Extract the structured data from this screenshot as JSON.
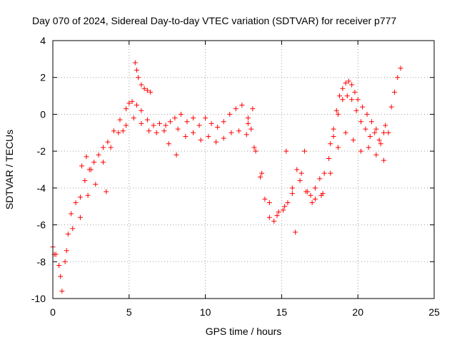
{
  "chart_data": {
    "type": "scatter",
    "title": "Day 070 of 2024, Sidereal Day-to-day VTEC variation (SDTVAR) for receiver p777",
    "xlabel": "GPS time / hours",
    "ylabel": "SDTVAR / TECUs",
    "xlim": [
      0,
      25
    ],
    "ylim": [
      -10,
      4
    ],
    "xticks": [
      0,
      5,
      10,
      15,
      20,
      25
    ],
    "yticks": [
      -10,
      -8,
      -6,
      -4,
      -2,
      0,
      2,
      4
    ],
    "xtick_labels": [
      "0",
      "5",
      "10",
      "15",
      "20",
      "25"
    ],
    "ytick_labels": [
      "-10",
      "-8",
      "-6",
      "-4",
      "-2",
      "0",
      "2",
      "4"
    ],
    "grid": true,
    "marker": "+",
    "color": "#ff0000",
    "series": [
      {
        "x": [
          0.0,
          0.2,
          0.4,
          0.6,
          0.8,
          1.0,
          1.2,
          1.5,
          1.8,
          2.1,
          2.4,
          2.7,
          3.0,
          3.3,
          3.6,
          4.0,
          4.4,
          4.8,
          5.0,
          5.2,
          5.5,
          5.8,
          6.2,
          6.6,
          7.0,
          7.4,
          7.7,
          8.0,
          8.4,
          8.8,
          9.2,
          9.6,
          10.0,
          10.4,
          10.8,
          11.2,
          11.6,
          12.0,
          12.4,
          12.8,
          13.0,
          13.3,
          13.6,
          13.9,
          14.2,
          14.5,
          14.8,
          15.1,
          15.4,
          15.7,
          16.0,
          16.3,
          16.6,
          16.9,
          17.2,
          17.5,
          17.8,
          18.1,
          18.4,
          18.7,
          19.0,
          19.3,
          19.6,
          19.9,
          20.2,
          20.5,
          20.8,
          21.1,
          21.4,
          21.7
        ],
        "y": [
          -7.2,
          -7.6,
          -8.2,
          -9.6,
          -8.0,
          -6.5,
          -5.4,
          -4.8,
          -4.5,
          -3.6,
          -3.0,
          -2.6,
          -2.2,
          -1.8,
          -1.5,
          -0.9,
          -0.3,
          0.3,
          0.6,
          0.7,
          0.5,
          0.2,
          -0.3,
          -0.6,
          -0.5,
          -0.6,
          -0.4,
          -0.2,
          0.0,
          -0.4,
          -0.2,
          -0.6,
          -0.2,
          -0.5,
          -0.7,
          -0.4,
          0.0,
          0.3,
          0.5,
          -0.2,
          -0.8,
          -2.0,
          -3.4,
          -4.6,
          -5.6,
          -5.8,
          -5.3,
          -5.2,
          -4.8,
          -4.0,
          -3.0,
          -3.2,
          -4.2,
          -4.4,
          -4.0,
          -3.5,
          -3.2,
          -2.4,
          -1.2,
          0.0,
          0.8,
          1.0,
          0.8,
          0.2,
          -0.4,
          -0.8,
          -1.2,
          -1.0,
          -1.4,
          -1.0
        ]
      },
      {
        "x": [
          0.1,
          0.5,
          0.9,
          1.3,
          1.8,
          2.3,
          2.8,
          3.3,
          3.8,
          4.3,
          4.8,
          5.3,
          5.8,
          6.3,
          6.8,
          7.3,
          8.2,
          8.7,
          9.2,
          9.7,
          10.2,
          10.7,
          11.2,
          11.7,
          12.2,
          12.7,
          13.2,
          13.7,
          14.2,
          14.7,
          15.2,
          15.7,
          16.2,
          16.7,
          17.2,
          17.7,
          18.2,
          18.7,
          19.2,
          19.7,
          20.2,
          20.7,
          21.2,
          21.7
        ],
        "y": [
          -7.6,
          -8.8,
          -7.4,
          -6.2,
          -5.6,
          -4.4,
          -3.8,
          -2.6,
          -1.8,
          -1.0,
          -0.6,
          -0.2,
          -0.5,
          -0.9,
          -1.0,
          -0.9,
          -0.8,
          -1.2,
          -1.0,
          -1.4,
          -1.2,
          -1.5,
          -1.3,
          -1.0,
          -0.9,
          -1.1,
          -1.8,
          -3.2,
          -4.8,
          -5.5,
          -5.0,
          -4.3,
          -3.6,
          -4.2,
          -4.6,
          -4.3,
          -3.2,
          -1.8,
          -1.0,
          -1.4,
          -2.0,
          -1.8,
          -2.2,
          -2.5
        ]
      },
      {
        "x": [
          5.4,
          5.5,
          5.6,
          5.8,
          6.0,
          6.2,
          6.4
        ],
        "y": [
          2.8,
          2.4,
          2.0,
          1.6,
          1.4,
          1.3,
          1.2
        ]
      },
      {
        "x": [
          18.2,
          18.4,
          18.6,
          18.8,
          19.0,
          19.2,
          19.4,
          19.6,
          19.8,
          20.0,
          20.3,
          20.6,
          20.9,
          21.2,
          21.5
        ],
        "y": [
          -1.6,
          -0.8,
          0.2,
          1.0,
          1.4,
          1.7,
          1.8,
          1.6,
          1.2,
          0.8,
          0.4,
          0.0,
          -0.4,
          -0.8,
          -1.6
        ]
      },
      {
        "x": [
          21.8,
          22.0,
          22.2,
          22.4,
          22.6,
          22.8
        ],
        "y": [
          -0.6,
          -1.0,
          0.4,
          1.2,
          2.0,
          2.5
        ]
      },
      {
        "x": [
          1.9,
          2.2,
          2.5,
          3.5,
          4.6,
          7.6,
          8.1,
          12.8,
          13.1,
          15.3,
          15.9,
          16.5,
          17.0,
          17.6
        ],
        "y": [
          -2.8,
          -2.3,
          -3.0,
          -4.2,
          -0.9,
          -1.6,
          -2.2,
          -0.5,
          0.3,
          -2.0,
          -6.4,
          -2.0,
          -4.8,
          -4.4
        ]
      }
    ]
  }
}
